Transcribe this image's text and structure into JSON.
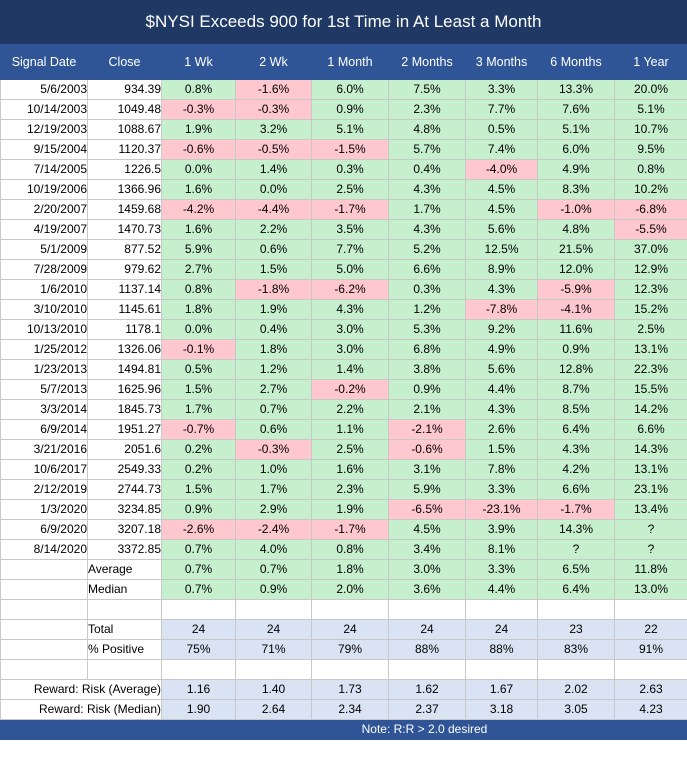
{
  "title": "$NYSI Exceeds 900 for 1st  Time in At Least a Month",
  "headers": [
    "Signal Date",
    "Close",
    "1 Wk",
    "2 Wk",
    "1 Month",
    "2 Months",
    "3 Months",
    "6 Months",
    "1 Year"
  ],
  "rows": [
    {
      "date": "5/6/2003",
      "close": "934.39",
      "values": [
        "0.8%",
        "-1.6%",
        "6.0%",
        "7.5%",
        "3.3%",
        "13.3%",
        "20.0%"
      ]
    },
    {
      "date": "10/14/2003",
      "close": "1049.48",
      "values": [
        "-0.3%",
        "-0.3%",
        "0.9%",
        "2.3%",
        "7.7%",
        "7.6%",
        "5.1%"
      ]
    },
    {
      "date": "12/19/2003",
      "close": "1088.67",
      "values": [
        "1.9%",
        "3.2%",
        "5.1%",
        "4.8%",
        "0.5%",
        "5.1%",
        "10.7%"
      ]
    },
    {
      "date": "9/15/2004",
      "close": "1120.37",
      "values": [
        "-0.6%",
        "-0.5%",
        "-1.5%",
        "5.7%",
        "7.4%",
        "6.0%",
        "9.5%"
      ]
    },
    {
      "date": "7/14/2005",
      "close": "1226.5",
      "values": [
        "0.0%",
        "1.4%",
        "0.3%",
        "0.4%",
        "-4.0%",
        "4.9%",
        "0.8%"
      ]
    },
    {
      "date": "10/19/2006",
      "close": "1366.96",
      "values": [
        "1.6%",
        "0.0%",
        "2.5%",
        "4.3%",
        "4.5%",
        "8.3%",
        "10.2%"
      ]
    },
    {
      "date": "2/20/2007",
      "close": "1459.68",
      "values": [
        "-4.2%",
        "-4.4%",
        "-1.7%",
        "1.7%",
        "4.5%",
        "-1.0%",
        "-6.8%"
      ]
    },
    {
      "date": "4/19/2007",
      "close": "1470.73",
      "values": [
        "1.6%",
        "2.2%",
        "3.5%",
        "4.3%",
        "5.6%",
        "4.8%",
        "-5.5%"
      ]
    },
    {
      "date": "5/1/2009",
      "close": "877.52",
      "values": [
        "5.9%",
        "0.6%",
        "7.7%",
        "5.2%",
        "12.5%",
        "21.5%",
        "37.0%"
      ]
    },
    {
      "date": "7/28/2009",
      "close": "979.62",
      "values": [
        "2.7%",
        "1.5%",
        "5.0%",
        "6.6%",
        "8.9%",
        "12.0%",
        "12.9%"
      ]
    },
    {
      "date": "1/6/2010",
      "close": "1137.14",
      "values": [
        "0.8%",
        "-1.8%",
        "-6.2%",
        "0.3%",
        "4.3%",
        "-5.9%",
        "12.3%"
      ]
    },
    {
      "date": "3/10/2010",
      "close": "1145.61",
      "values": [
        "1.8%",
        "1.9%",
        "4.3%",
        "1.2%",
        "-7.8%",
        "-4.1%",
        "15.2%"
      ]
    },
    {
      "date": "10/13/2010",
      "close": "1178.1",
      "values": [
        "0.0%",
        "0.4%",
        "3.0%",
        "5.3%",
        "9.2%",
        "11.6%",
        "2.5%"
      ]
    },
    {
      "date": "1/25/2012",
      "close": "1326.06",
      "values": [
        "-0.1%",
        "1.8%",
        "3.0%",
        "6.8%",
        "4.9%",
        "0.9%",
        "13.1%"
      ]
    },
    {
      "date": "1/23/2013",
      "close": "1494.81",
      "values": [
        "0.5%",
        "1.2%",
        "1.4%",
        "3.8%",
        "5.6%",
        "12.8%",
        "22.3%"
      ]
    },
    {
      "date": "5/7/2013",
      "close": "1625.96",
      "values": [
        "1.5%",
        "2.7%",
        "-0.2%",
        "0.9%",
        "4.4%",
        "8.7%",
        "15.5%"
      ]
    },
    {
      "date": "3/3/2014",
      "close": "1845.73",
      "values": [
        "1.7%",
        "0.7%",
        "2.2%",
        "2.1%",
        "4.3%",
        "8.5%",
        "14.2%"
      ]
    },
    {
      "date": "6/9/2014",
      "close": "1951.27",
      "values": [
        "-0.7%",
        "0.6%",
        "1.1%",
        "-2.1%",
        "2.6%",
        "6.4%",
        "6.6%"
      ]
    },
    {
      "date": "3/21/2016",
      "close": "2051.6",
      "values": [
        "0.2%",
        "-0.3%",
        "2.5%",
        "-0.6%",
        "1.5%",
        "4.3%",
        "14.3%"
      ]
    },
    {
      "date": "10/6/2017",
      "close": "2549.33",
      "values": [
        "0.2%",
        "1.0%",
        "1.6%",
        "3.1%",
        "7.8%",
        "4.2%",
        "13.1%"
      ]
    },
    {
      "date": "2/12/2019",
      "close": "2744.73",
      "values": [
        "1.5%",
        "1.7%",
        "2.3%",
        "5.9%",
        "3.3%",
        "6.6%",
        "23.1%"
      ]
    },
    {
      "date": "1/3/2020",
      "close": "3234.85",
      "values": [
        "0.9%",
        "2.9%",
        "1.9%",
        "-6.5%",
        "-23.1%",
        "-1.7%",
        "13.4%"
      ]
    },
    {
      "date": "6/9/2020",
      "close": "3207.18",
      "values": [
        "-2.6%",
        "-2.4%",
        "-1.7%",
        "4.5%",
        "3.9%",
        "14.3%",
        "?"
      ]
    },
    {
      "date": "8/14/2020",
      "close": "3372.85",
      "values": [
        "0.7%",
        "4.0%",
        "0.8%",
        "3.4%",
        "8.1%",
        "?",
        "?"
      ]
    }
  ],
  "stats": [
    {
      "label": "Average",
      "values": [
        "0.7%",
        "0.7%",
        "1.8%",
        "3.0%",
        "3.3%",
        "6.5%",
        "11.8%"
      ]
    },
    {
      "label": "Median",
      "values": [
        "0.7%",
        "0.9%",
        "2.0%",
        "3.6%",
        "4.4%",
        "6.4%",
        "13.0%"
      ]
    }
  ],
  "summary": [
    {
      "label": "Total",
      "values": [
        "24",
        "24",
        "24",
        "24",
        "24",
        "23",
        "22"
      ]
    },
    {
      "label": "% Positive",
      "values": [
        "75%",
        "71%",
        "79%",
        "88%",
        "88%",
        "83%",
        "91%"
      ]
    }
  ],
  "reward_risk": [
    {
      "label": "Reward:  Risk (Average)",
      "values": [
        "1.16",
        "1.40",
        "1.73",
        "1.62",
        "1.67",
        "2.02",
        "2.63"
      ]
    },
    {
      "label": "Reward:  Risk (Median)",
      "values": [
        "1.90",
        "2.64",
        "2.34",
        "2.37",
        "3.18",
        "3.05",
        "4.23"
      ]
    }
  ],
  "note": "Note:  R:R > 2.0 desired",
  "colors": {
    "title_bg": "#1f3864",
    "header_bg": "#2f5597",
    "positive": "#c6efce",
    "negative": "#ffc7ce",
    "summary_bg": "#dae3f3"
  }
}
